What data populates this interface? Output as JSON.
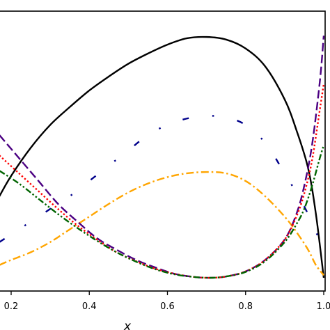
{
  "chart_data": {
    "type": "line",
    "xlabel": "x",
    "xlim": [
      0.17,
      1.0
    ],
    "ylim": [
      0.0,
      1.0
    ],
    "x_ticks": [
      0.2,
      0.4,
      0.6,
      0.8,
      "1.0"
    ],
    "grid": false,
    "legend": "none",
    "series": [
      {
        "style": "solid",
        "color": "#000000",
        "x": [
          0.17,
          0.2,
          0.25,
          0.3,
          0.35,
          0.4,
          0.45,
          0.5,
          0.55,
          0.6,
          0.65,
          0.7,
          0.75,
          0.8,
          0.85,
          0.9,
          0.93,
          0.96,
          0.98,
          1.0
        ],
        "y": [
          0.32,
          0.4,
          0.51,
          0.6,
          0.67,
          0.735,
          0.79,
          0.84,
          0.88,
          0.915,
          0.94,
          0.945,
          0.935,
          0.9,
          0.83,
          0.7,
          0.58,
          0.43,
          0.25,
          0.0
        ]
      },
      {
        "style": "dashdot-sparse",
        "color": "#00008b",
        "x": [
          0.17,
          0.25,
          0.3,
          0.35,
          0.4,
          0.45,
          0.5,
          0.55,
          0.6,
          0.65,
          0.7,
          0.75,
          0.8,
          0.85,
          0.9,
          0.95,
          0.98,
          1.0
        ],
        "y": [
          0.14,
          0.22,
          0.27,
          0.32,
          0.38,
          0.44,
          0.5,
          0.56,
          0.6,
          0.625,
          0.635,
          0.63,
          0.6,
          0.53,
          0.41,
          0.28,
          0.18,
          0.12
        ]
      },
      {
        "style": "dashdot",
        "color": "#ffa500",
        "x": [
          0.17,
          0.2,
          0.25,
          0.3,
          0.35,
          0.4,
          0.45,
          0.5,
          0.55,
          0.6,
          0.65,
          0.7,
          0.75,
          0.8,
          0.85,
          0.9,
          0.93,
          0.96,
          0.98,
          1.0
        ],
        "y": [
          0.05,
          0.07,
          0.1,
          0.14,
          0.19,
          0.24,
          0.29,
          0.335,
          0.37,
          0.395,
          0.41,
          0.415,
          0.41,
          0.38,
          0.32,
          0.24,
          0.18,
          0.11,
          0.05,
          0.01
        ]
      },
      {
        "style": "dashed",
        "color": "#4b0082",
        "x": [
          0.17,
          0.22,
          0.27,
          0.32,
          0.37,
          0.42,
          0.47,
          0.52,
          0.57,
          0.62,
          0.67,
          0.71,
          0.75,
          0.8,
          0.85,
          0.9,
          0.93,
          0.95,
          0.97,
          0.99,
          1.0
        ],
        "y": [
          0.56,
          0.47,
          0.38,
          0.29,
          0.22,
          0.155,
          0.11,
          0.07,
          0.04,
          0.015,
          0.003,
          0.0,
          0.005,
          0.025,
          0.07,
          0.15,
          0.25,
          0.36,
          0.52,
          0.77,
          0.95
        ]
      },
      {
        "style": "dotted",
        "color": "#ff0000",
        "x": [
          0.17,
          0.22,
          0.27,
          0.32,
          0.37,
          0.42,
          0.47,
          0.52,
          0.57,
          0.62,
          0.67,
          0.71,
          0.75,
          0.8,
          0.85,
          0.9,
          0.93,
          0.95,
          0.97,
          0.99,
          1.0
        ],
        "y": [
          0.48,
          0.41,
          0.34,
          0.27,
          0.205,
          0.15,
          0.1,
          0.065,
          0.035,
          0.015,
          0.003,
          0.0,
          0.005,
          0.025,
          0.07,
          0.15,
          0.24,
          0.33,
          0.46,
          0.66,
          0.76
        ]
      },
      {
        "style": "dashdotdot",
        "color": "#006400",
        "x": [
          0.17,
          0.22,
          0.27,
          0.32,
          0.37,
          0.42,
          0.47,
          0.52,
          0.57,
          0.62,
          0.67,
          0.71,
          0.75,
          0.8,
          0.85,
          0.9,
          0.93,
          0.95,
          0.97,
          0.99,
          1.0
        ],
        "y": [
          0.42,
          0.37,
          0.31,
          0.25,
          0.195,
          0.145,
          0.1,
          0.063,
          0.033,
          0.013,
          0.003,
          0.0,
          0.005,
          0.023,
          0.065,
          0.14,
          0.21,
          0.27,
          0.36,
          0.47,
          0.52
        ]
      }
    ]
  }
}
